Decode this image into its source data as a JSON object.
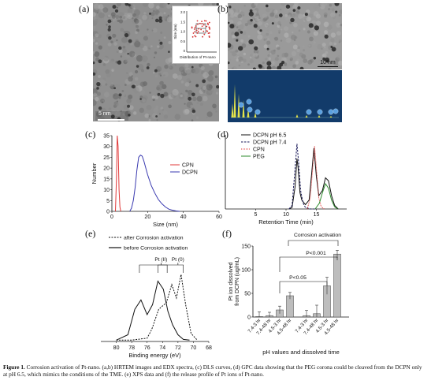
{
  "panels": {
    "a": {
      "label": "(a)",
      "scale_bar": "5 nm",
      "inset_ylabel": "Size (nm)",
      "inset_xlabel": "Distribution of Pt-nano",
      "inset_yticks": [
        "2.0",
        "1.5",
        "1.0",
        "0.5",
        "0"
      ]
    },
    "b": {
      "label": "(b)",
      "scale_bar": "10 nm"
    },
    "c": {
      "label": "(c)"
    },
    "d": {
      "label": "(d)"
    },
    "e": {
      "label": "(e)",
      "legend": [
        "after Corrosion activation",
        "before Corrosion activation"
      ],
      "annotations": [
        "Pt (II)",
        "Pt (0)"
      ]
    },
    "f": {
      "label": "(f)",
      "annotations": [
        "Corrosion activation",
        "P<0.001",
        "P<0.05"
      ]
    }
  },
  "chart_data": [
    {
      "panel": "c",
      "type": "line",
      "xlabel": "Size (nm)",
      "ylabel": "Number",
      "xlim": [
        0,
        60
      ],
      "ylim": [
        0,
        35
      ],
      "xticks": [
        0,
        20,
        40,
        60
      ],
      "yticks": [
        0,
        5,
        10,
        15,
        20,
        25,
        30,
        35
      ],
      "legend_position": "center-right",
      "series": [
        {
          "name": "CPN",
          "color": "#e03a3a",
          "x": [
            2.0,
            2.5,
            3.0,
            3.5,
            4.0,
            4.5,
            5.0
          ],
          "y": [
            0,
            14,
            35,
            30,
            10,
            2,
            0
          ]
        },
        {
          "name": "DCPN",
          "color": "#3a3ab0",
          "x": [
            10,
            11,
            12,
            13,
            14,
            15,
            16,
            17,
            18,
            20,
            22,
            24,
            26,
            28,
            30,
            32,
            34,
            36,
            38
          ],
          "y": [
            0,
            1.5,
            5,
            11,
            19,
            25,
            26,
            25.5,
            23,
            17,
            12,
            8.5,
            5.5,
            3.5,
            2,
            1,
            0.5,
            0.2,
            0
          ]
        }
      ]
    },
    {
      "panel": "d",
      "type": "line",
      "xlabel": "Retention Time (min)",
      "xlim": [
        0,
        20
      ],
      "ylim": [
        0,
        1.0
      ],
      "xticks": [
        5,
        10,
        15
      ],
      "legend_position": "top-right",
      "series": [
        {
          "name": "DCPN pH 6.5",
          "color": "#111111",
          "style": "solid",
          "x": [
            10.5,
            11.0,
            11.5,
            11.8,
            12.0,
            12.3,
            12.6,
            13.2,
            13.8,
            14.2,
            14.6,
            15.0,
            15.4,
            16.0,
            16.5,
            17.0,
            17.5,
            18.0,
            18.6
          ],
          "y": [
            0,
            0.02,
            0.3,
            0.68,
            0.55,
            0.22,
            0.12,
            0.06,
            0.12,
            0.45,
            0.82,
            0.44,
            0.18,
            0.25,
            0.42,
            0.38,
            0.18,
            0.05,
            0
          ]
        },
        {
          "name": "DCPN pH 7.4",
          "color": "#1a1a5a",
          "style": "dashed",
          "x": [
            10.5,
            11.0,
            11.5,
            11.8,
            12.1,
            12.4,
            12.8,
            13.2,
            14.0,
            15.0
          ],
          "y": [
            0,
            0.05,
            0.55,
            0.88,
            0.6,
            0.25,
            0.08,
            0.02,
            0,
            0
          ]
        },
        {
          "name": "CPN",
          "color": "#e03a3a",
          "style": "dotted",
          "x": [
            13.5,
            14.0,
            14.4,
            14.7,
            15.0,
            15.4,
            15.8,
            16.3
          ],
          "y": [
            0,
            0.15,
            0.55,
            0.85,
            0.55,
            0.15,
            0.03,
            0
          ]
        },
        {
          "name": "PEG",
          "color": "#2e8b2e",
          "style": "solid",
          "x": [
            14.8,
            15.5,
            16.0,
            16.5,
            17.0,
            17.5,
            18.0,
            18.5
          ],
          "y": [
            0,
            0.08,
            0.22,
            0.34,
            0.28,
            0.12,
            0.03,
            0
          ]
        }
      ]
    },
    {
      "panel": "e",
      "type": "line",
      "xlabel": "Binding energy (eV)",
      "xlim": [
        82,
        68
      ],
      "xticks": [
        80,
        78,
        76,
        74,
        72,
        70,
        68
      ],
      "legend_position": "top",
      "series": [
        {
          "name": "after Corrosion activation",
          "style": "dashed",
          "x": [
            80,
            78,
            76,
            75.4,
            74.5,
            73.5,
            72.8,
            72.2,
            71.6,
            71,
            70.3,
            69.5
          ],
          "y": [
            0.02,
            0.02,
            0.05,
            0.18,
            0.48,
            0.58,
            0.85,
            0.65,
            1.0,
            0.55,
            0.12,
            0.02
          ]
        },
        {
          "name": "before Corrosion activation",
          "style": "solid",
          "x": [
            80,
            78.5,
            77.6,
            76.8,
            76.0,
            75.3,
            74.6,
            73.9,
            73.3,
            72.7,
            72.0,
            71.3,
            70.5
          ],
          "y": [
            0.02,
            0.1,
            0.48,
            0.62,
            0.4,
            0.55,
            0.9,
            0.78,
            0.45,
            0.25,
            0.1,
            0.03,
            0.02
          ]
        }
      ]
    },
    {
      "panel": "f",
      "type": "bar",
      "ylabel": "Pt ion dissolved from DCPN (ug/mL)",
      "xlabel": "pH values and dissolved time",
      "ylim": [
        0,
        150
      ],
      "yticks": [
        0,
        50,
        100,
        150
      ],
      "categories": [
        "7.4-3 hr",
        "7.4-48 hr",
        "4.5-3 hr",
        "4.5-48 hr",
        "7.4-3 hr",
        "7.4-48 hr",
        "4.5-3 hr",
        "4.5-48 hr"
      ],
      "values": [
        1,
        3,
        15,
        45,
        3,
        7,
        66,
        133
      ],
      "errors": [
        10,
        7,
        8,
        7,
        11,
        18,
        18,
        8
      ]
    }
  ],
  "caption": {
    "prefix": "Figure 1.",
    "text": " Corrosion activation of Pt-nano. (a,b) HRTEM images and EDX spectra, (c) DLS curves, (d) GPC data showing that the PEG corona could be cleaved from the DCPN only at pH 6.5, which mimics the conditions of the TME. (e) XPS data and (f) the release profile of Pt ions of Pt-nano."
  }
}
